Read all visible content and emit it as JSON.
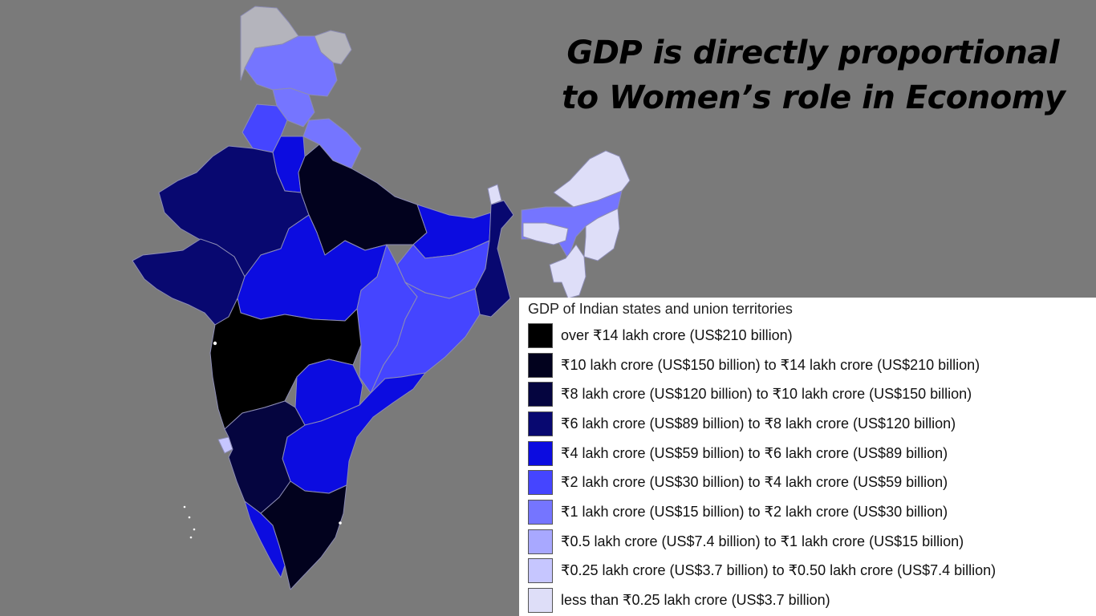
{
  "headline": {
    "line1": "GDP is directly proportional",
    "line2": "to Women’s role in Economy"
  },
  "legend": {
    "title": "GDP of Indian states and union territories",
    "items": [
      {
        "label": "over ₹14 lakh crore (US$210 billion)",
        "color": "#000000"
      },
      {
        "label": "₹10 lakh crore (US$150 billion) to ₹14 lakh crore (US$210 billion)",
        "color": "#02021e"
      },
      {
        "label": "₹8 lakh crore (US$120 billion) to ₹10 lakh crore (US$150 billion)",
        "color": "#05053f"
      },
      {
        "label": "₹6 lakh crore (US$89 billion) to ₹8 lakh crore (US$120 billion)",
        "color": "#080870"
      },
      {
        "label": "₹4 lakh crore (US$59 billion) to ₹6 lakh crore (US$89 billion)",
        "color": "#0c0ce0"
      },
      {
        "label": "₹2 lakh crore (US$30 billion) to ₹4 lakh crore (US$59 billion)",
        "color": "#4545ff"
      },
      {
        "label": "₹1 lakh crore (US$15 billion) to ₹2 lakh crore (US$30 billion)",
        "color": "#7575ff"
      },
      {
        "label": "₹0.5 lakh crore (US$7.4 billion) to ₹1 lakh crore (US$15 billion)",
        "color": "#a8a8ff"
      },
      {
        "label": "₹0.25 lakh crore (US$3.7 billion) to ₹0.50 lakh crore (US$7.4 billion)",
        "color": "#c6c6ff"
      },
      {
        "label": "less than ₹0.25 lakh crore (US$3.7 billion)",
        "color": "#dedef8"
      }
    ]
  },
  "colors": {
    "background": "#7a7a7a",
    "disputed_region": "#b4b4bc",
    "region_border": "#8a8aaa"
  }
}
